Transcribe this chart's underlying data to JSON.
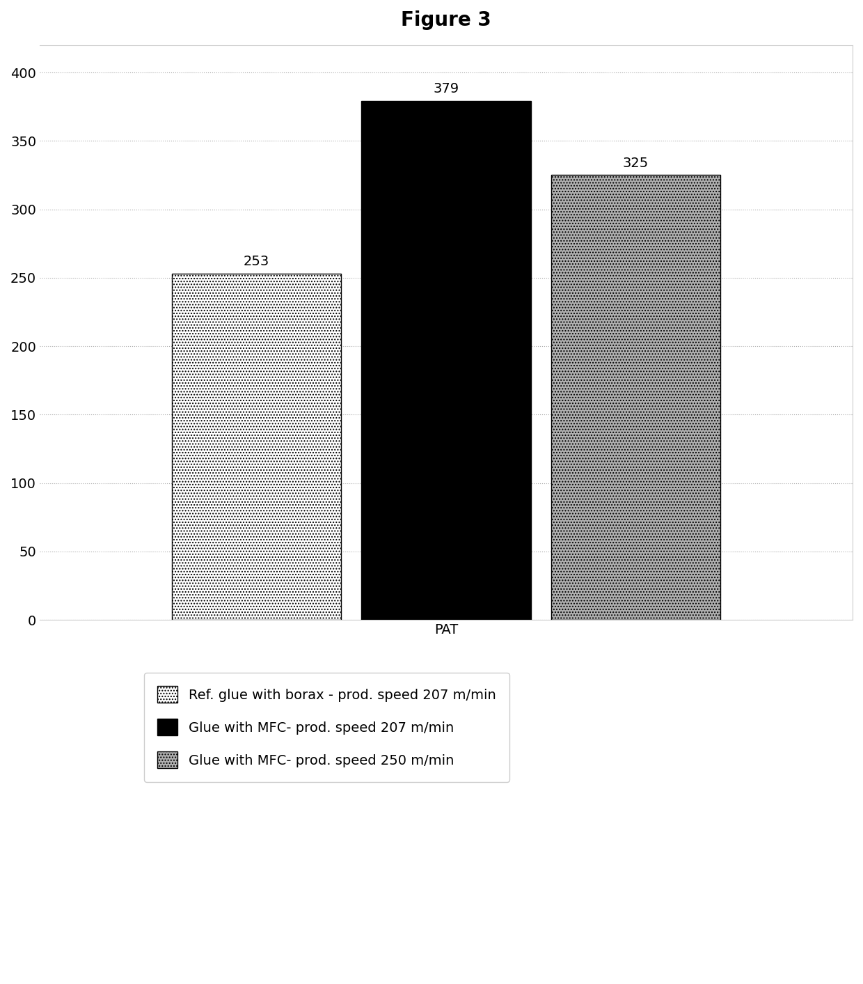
{
  "title": "Figure 3",
  "values": [
    253,
    379,
    325
  ],
  "legend_labels": [
    "Ref. glue with borax - prod. speed 207 m/min",
    "Glue with MFC- prod. speed 207 m/min",
    "Glue with MFC- prod. speed 250 m/min"
  ],
  "xlabel": "PAT",
  "ylim": [
    0,
    420
  ],
  "yticks": [
    0,
    50,
    100,
    150,
    200,
    250,
    300,
    350,
    400
  ],
  "title_fontsize": 20,
  "tick_fontsize": 14,
  "label_fontsize": 14,
  "legend_fontsize": 14,
  "xlabel_fontsize": 14,
  "background_color": "#ffffff",
  "bar_width": 0.25,
  "bar_positions": [
    -0.28,
    0.0,
    0.28
  ],
  "xlim": [
    -0.6,
    0.6
  ]
}
